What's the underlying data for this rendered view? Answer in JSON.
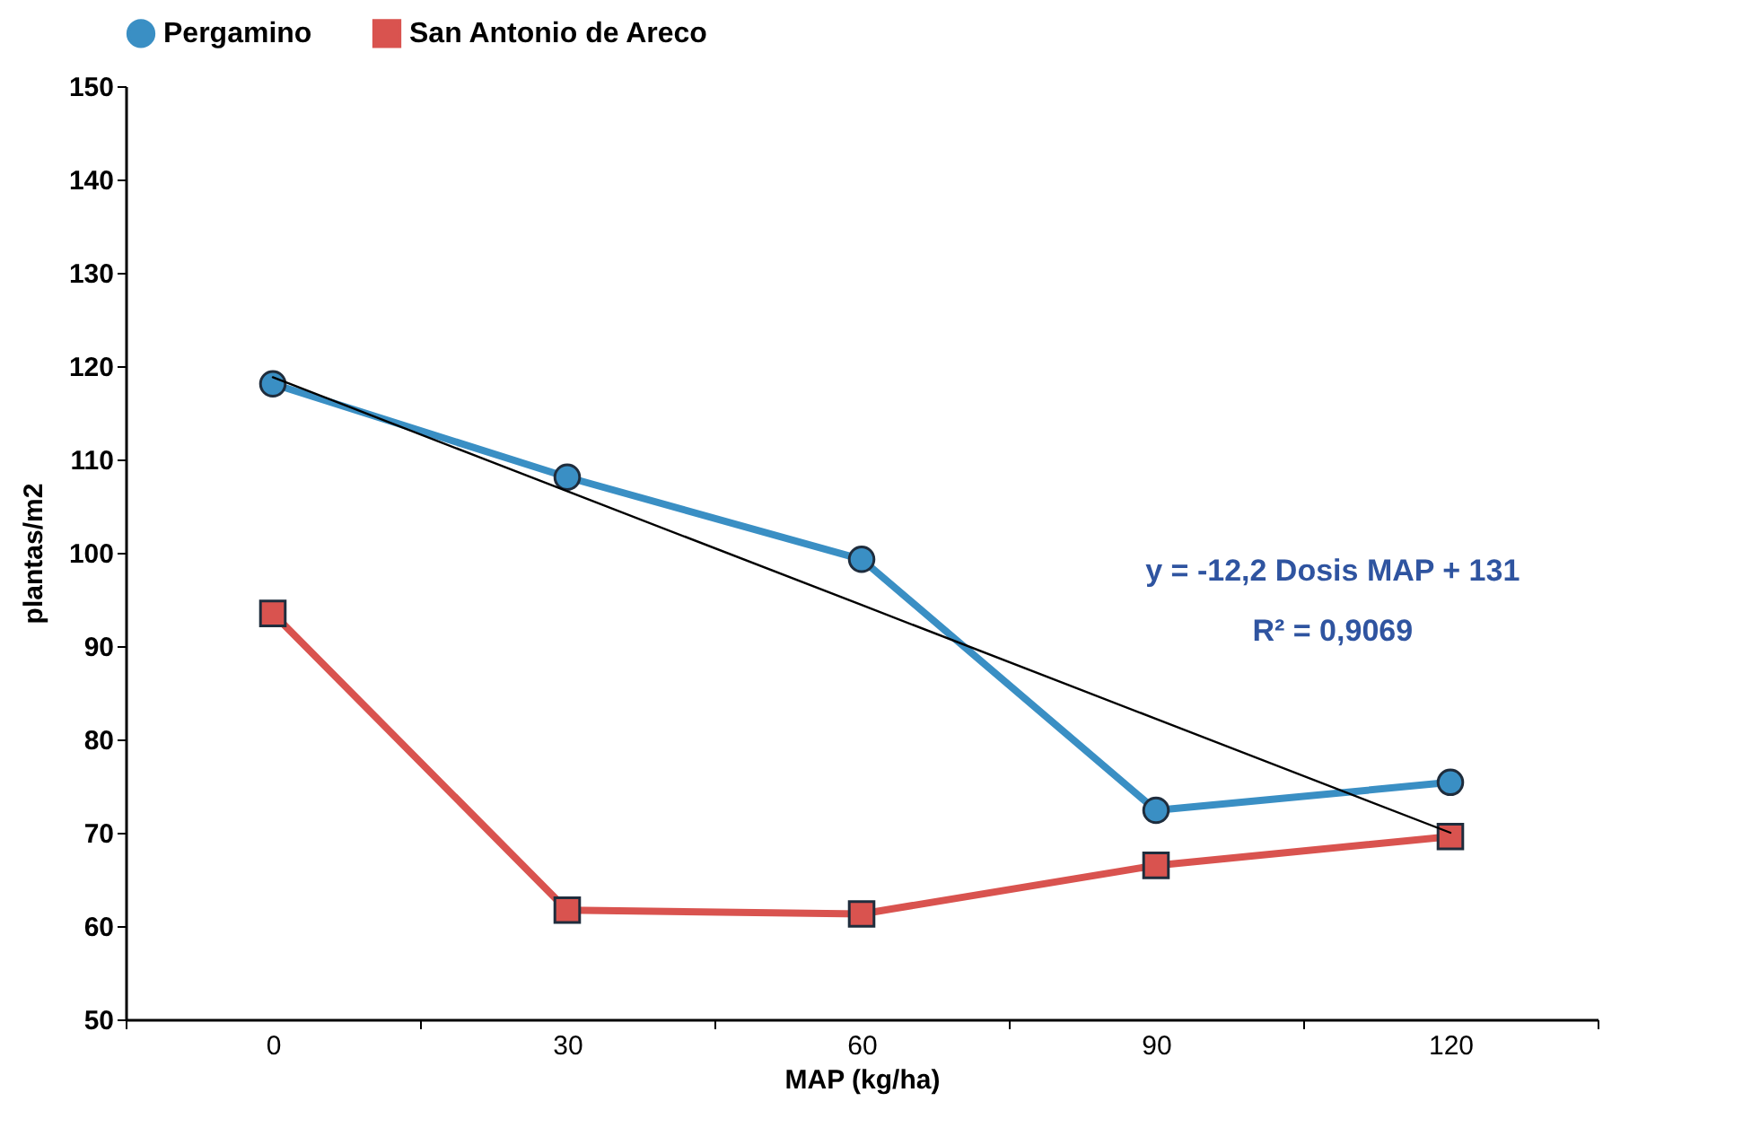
{
  "chart_data": {
    "type": "line",
    "xlabel": "MAP (kg/ha)",
    "ylabel": "plantas/m2",
    "categories": [
      "0",
      "30",
      "60",
      "90",
      "120"
    ],
    "ylim": [
      50,
      150
    ],
    "yticks": [
      50,
      60,
      70,
      80,
      90,
      100,
      110,
      120,
      130,
      140,
      150
    ],
    "grid": false,
    "legend": "top",
    "line_style": "solid",
    "annotations": [
      "y = -12,2 Dosis MAP + 131",
      "R² = 0,9069"
    ],
    "series": [
      {
        "name": "Pergamino",
        "color": "#3a8fc4",
        "marker": "circle",
        "values": [
          118.1,
          108.1,
          99.3,
          72.4,
          75.4
        ]
      },
      {
        "name": "San Antonio de Areco",
        "color": "#d9534f",
        "marker": "square",
        "values": [
          93.5,
          61.7,
          61.3,
          66.5,
          69.6
        ]
      },
      {
        "type": "line",
        "color": "#000000",
        "marker": "none",
        "values": [
          118.8,
          106.6,
          94.4,
          82.2,
          70
        ]
      }
    ]
  }
}
